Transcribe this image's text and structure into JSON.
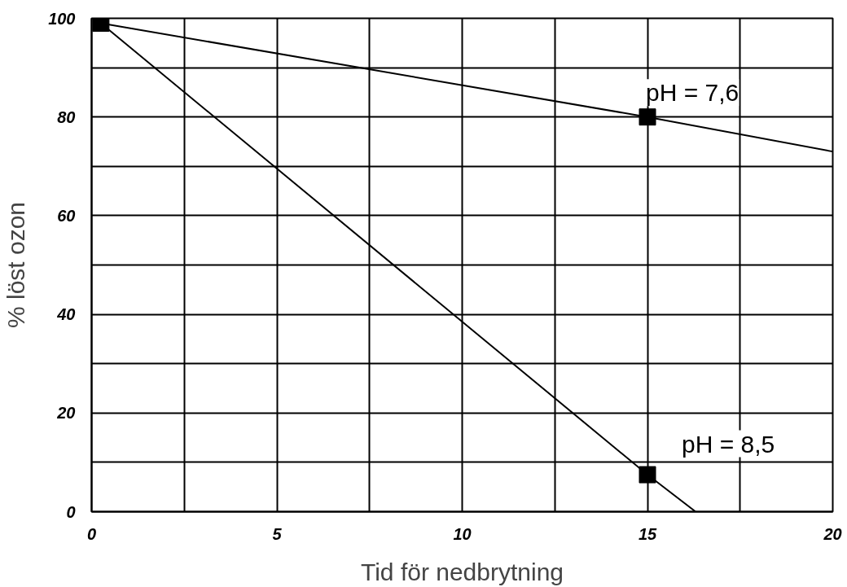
{
  "chart_data": {
    "type": "line",
    "xlabel": "Tid för nedbrytning",
    "ylabel": "% löst ozon",
    "xlim": [
      0,
      20
    ],
    "ylim": [
      0,
      100
    ],
    "xticks": [
      0,
      {
        "value": 2.5,
        "label": null
      },
      5,
      {
        "value": 7.5,
        "label": null
      },
      10,
      {
        "value": 12.5,
        "label": null
      },
      15,
      {
        "value": 17.5,
        "label": null
      },
      20
    ],
    "yticks": [
      0,
      {
        "value": 10,
        "label": null
      },
      20,
      {
        "value": 30,
        "label": null
      },
      40,
      {
        "value": 50,
        "label": null
      },
      60,
      {
        "value": 70,
        "label": null
      },
      80,
      {
        "value": 90,
        "label": null
      },
      100
    ],
    "grid": true,
    "marker": "none",
    "line_style": "solid",
    "series": [
      {
        "name": "pH = 7,6",
        "color": "#000000",
        "x": [
          0.25,
          15,
          20
        ],
        "values": [
          99,
          80,
          73
        ]
      },
      {
        "name": "pH = 8,5",
        "color": "#000000",
        "x": [
          0.25,
          15,
          16.3
        ],
        "values": [
          99,
          7.5,
          0
        ]
      },
      {
        "type": "scatter",
        "marker": "square",
        "color": "#000000",
        "x": [
          0.25,
          15,
          15
        ],
        "values": [
          99,
          80,
          7.5
        ]
      }
    ]
  }
}
